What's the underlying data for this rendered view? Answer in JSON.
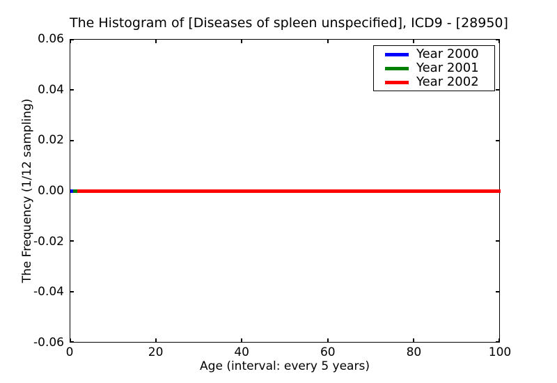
{
  "chart_data": {
    "type": "line",
    "title": "The Histogram of [Diseases of spleen unspecified], ICD9 - [28950]",
    "xlabel": "Age (interval: every 5 years)",
    "ylabel": "The Frequency (1/12 sampling)",
    "xlim": [
      0,
      100
    ],
    "ylim": [
      -0.06,
      0.06
    ],
    "xticks": [
      0,
      20,
      40,
      60,
      80,
      100
    ],
    "xtick_labels": [
      "0",
      "20",
      "40",
      "60",
      "80",
      "100"
    ],
    "yticks": [
      0.06,
      0.04,
      0.02,
      0.0,
      -0.02,
      -0.04,
      -0.06
    ],
    "ytick_labels": [
      "0.06",
      "0.04",
      "0.02",
      "0.00",
      "-0.02",
      "-0.04",
      "-0.06"
    ],
    "grid": false,
    "legend_position": "upper-right",
    "axes_background": "#ffffff",
    "axis_color": "#000000",
    "series": [
      {
        "name": "Year 2000",
        "color": "#0000ff",
        "x": [
          0,
          100
        ],
        "y": [
          0,
          0
        ]
      },
      {
        "name": "Year 2001",
        "color": "#008000",
        "x": [
          0,
          100
        ],
        "y": [
          0,
          0
        ]
      },
      {
        "name": "Year 2002",
        "color": "#ff0000",
        "x": [
          0,
          100
        ],
        "y": [
          0,
          0
        ]
      }
    ]
  }
}
